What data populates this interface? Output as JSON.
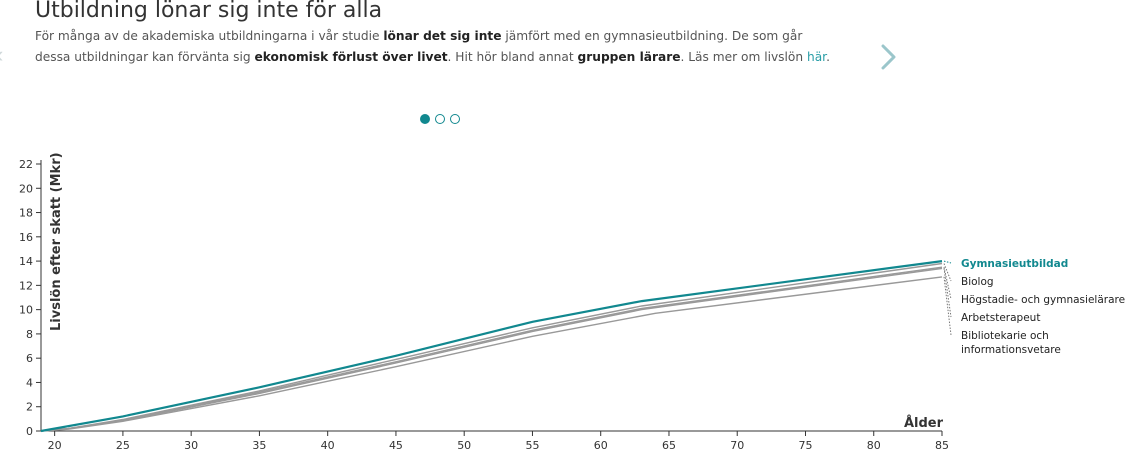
{
  "header": {
    "title": "Utbildning lönar sig inte för alla",
    "intro": {
      "p1": "För många av de akademiska utbildningarna i vår studie ",
      "b1": "lönar det sig inte",
      "p2": " jämfört med en gymnasieutbildning. De som går dessa utbildningar kan förvänta sig ",
      "b2": "ekonomisk förlust över livet",
      "p3": ". Hit hör bland annat ",
      "b3": "gruppen lärare",
      "p4": ". Läs mer om livslön ",
      "link": "här",
      "p5": "."
    }
  },
  "carousel": {
    "dots": 3,
    "active": 0
  },
  "colors": {
    "highlight": "#11888f",
    "gray": "#999999",
    "axis": "#333333"
  },
  "icons": {
    "next": "chevron-right-icon",
    "prev": "chevron-left-icon"
  },
  "chart_data": {
    "type": "line",
    "xlabel": "Ålder",
    "ylabel": "Livslön efter skatt (Mkr)",
    "xlim": [
      19,
      85
    ],
    "ylim": [
      0,
      22
    ],
    "xticks": [
      20,
      25,
      30,
      35,
      40,
      45,
      50,
      55,
      60,
      65,
      70,
      75,
      80,
      85
    ],
    "yticks": [
      0,
      2,
      4,
      6,
      8,
      10,
      12,
      14,
      16,
      18,
      20,
      22
    ],
    "grid": false,
    "legend_position": "right",
    "series": [
      {
        "name": "Gymnasieutbildad",
        "highlight": true,
        "x": [
          19,
          25,
          35,
          45,
          55,
          63,
          85
        ],
        "y": [
          0.0,
          1.2,
          3.6,
          6.2,
          9.0,
          10.7,
          14.0
        ]
      },
      {
        "name": "Biolog",
        "highlight": false,
        "x": [
          19,
          21,
          25,
          35,
          45,
          55,
          63,
          85
        ],
        "y": [
          0.0,
          0.2,
          0.95,
          3.3,
          5.9,
          8.5,
          10.3,
          13.8
        ]
      },
      {
        "name": "Högstadie- och gymnasielärare",
        "highlight": false,
        "x": [
          19,
          21,
          25,
          35,
          45,
          55,
          63,
          85
        ],
        "y": [
          0.0,
          0.2,
          0.9,
          3.2,
          5.7,
          8.3,
          10.1,
          13.5
        ]
      },
      {
        "name": "Arbetsterapeut",
        "highlight": false,
        "x": [
          19,
          21,
          25,
          35,
          45,
          55,
          63,
          85
        ],
        "y": [
          0.0,
          0.2,
          0.85,
          3.1,
          5.6,
          8.2,
          10.0,
          13.4
        ]
      },
      {
        "name": "Bibliotekarie och informationsvetare",
        "highlight": false,
        "x": [
          19,
          21,
          25,
          35,
          45,
          55,
          64,
          85
        ],
        "y": [
          0.0,
          0.15,
          0.8,
          2.9,
          5.3,
          7.8,
          9.7,
          12.7
        ]
      }
    ]
  }
}
